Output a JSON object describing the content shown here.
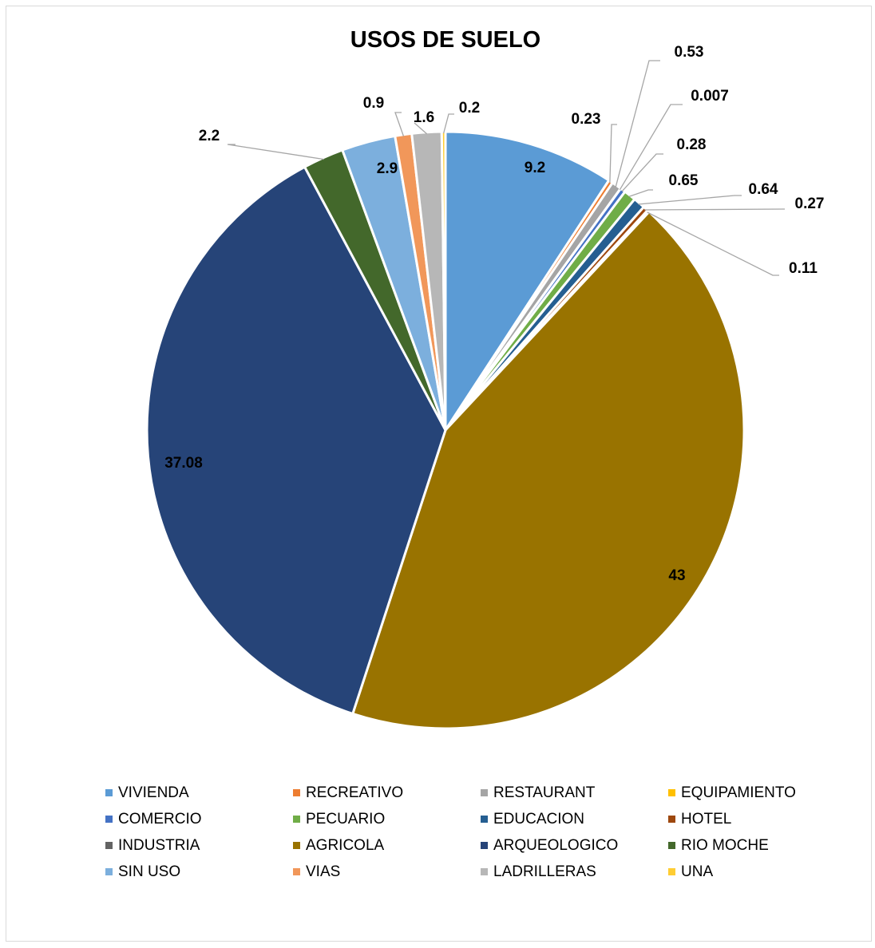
{
  "chart_data": {
    "type": "pie",
    "title": "USOS DE SUELO",
    "categories": [
      "VIVIENDA",
      "RECREATIVO",
      "RESTAURANT",
      "EQUIPAMIENTO",
      "COMERCIO",
      "PECUARIO",
      "EDUCACION",
      "HOTEL",
      "INDUSTRIA",
      "AGRICOLA",
      "ARQUEOLOGICO",
      "RIO MOCHE",
      "SIN USO",
      "VIAS",
      "LADRILLERAS",
      "UNA"
    ],
    "values": [
      9.2,
      0.23,
      0.53,
      0.007,
      0.28,
      0.65,
      0.64,
      0.27,
      0.11,
      43,
      37.08,
      2.2,
      2.9,
      0.9,
      1.6,
      0.2
    ],
    "labels": [
      "9.2",
      "0.23",
      "0.53",
      "0.007",
      "0.28",
      "0.65",
      "0.64",
      "0.27",
      "0.11",
      "43",
      "37.08",
      "2.2",
      "2.9",
      "0.9",
      "1.6",
      "0.2"
    ],
    "colors": [
      "#5b9bd5",
      "#ed7d31",
      "#a5a5a5",
      "#ffc000",
      "#4472c4",
      "#70ad47",
      "#255e91",
      "#9e480e",
      "#636363",
      "#997300",
      "#264478",
      "#43682b",
      "#7cafdd",
      "#f1975a",
      "#b7b7b7",
      "#ffcd33"
    ],
    "legend_position": "bottom"
  }
}
